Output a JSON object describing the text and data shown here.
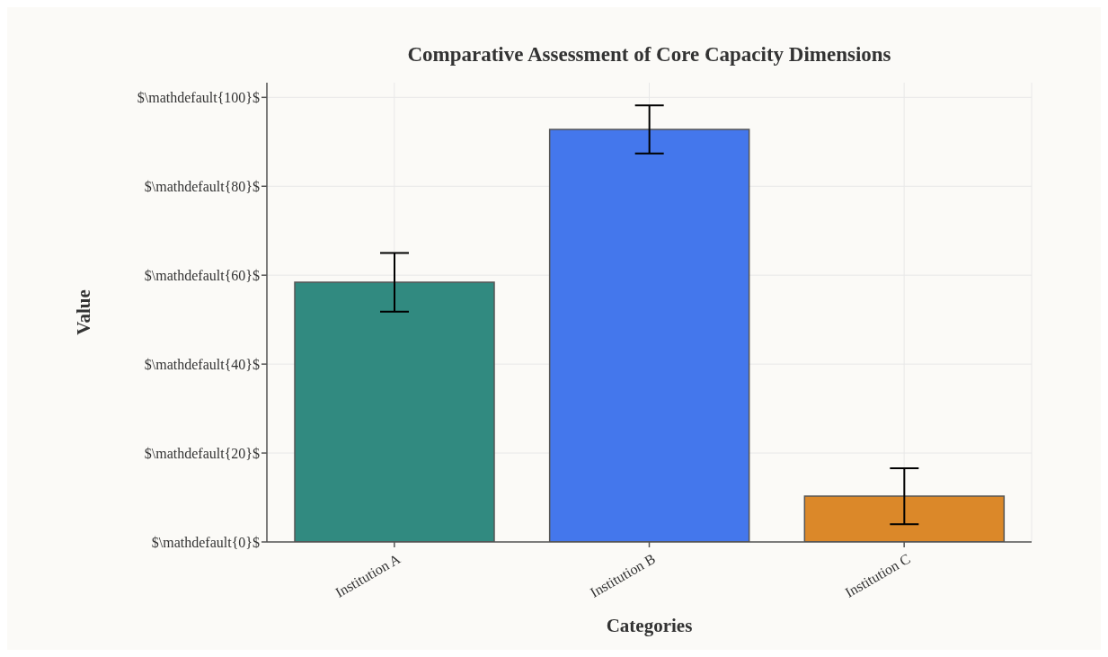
{
  "chart_data": {
    "type": "bar",
    "title": "Comparative Assessment of Core Capacity Dimensions",
    "xlabel": "Categories",
    "ylabel": "Value",
    "categories": [
      "Institution A",
      "Institution B",
      "Institution C"
    ],
    "values": [
      58.4,
      92.8,
      10.3
    ],
    "errors": [
      6.6,
      5.4,
      6.3
    ],
    "colors": [
      "#318a80",
      "#4477ec",
      "#db8829"
    ],
    "ylim": [
      0,
      103.3
    ],
    "yticks": [
      {
        "value": 0,
        "label": "$\\mathdefault{0}$"
      },
      {
        "value": 20,
        "label": "$\\mathdefault{20}$"
      },
      {
        "value": 40,
        "label": "$\\mathdefault{40}$"
      },
      {
        "value": 60,
        "label": "$\\mathdefault{60}$"
      },
      {
        "value": 80,
        "label": "$\\mathdefault{80}$"
      },
      {
        "value": 100,
        "label": "$\\mathdefault{100}$"
      }
    ],
    "grid": true
  }
}
